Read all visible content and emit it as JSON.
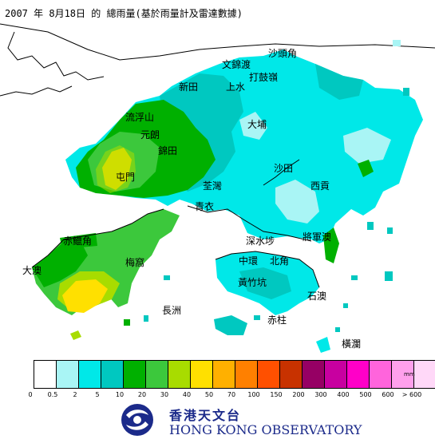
{
  "title": "2007 年 8月18日 的 總雨量(基於雨量計及雷達數據)",
  "places": [
    {
      "id": "sha-tau-kok",
      "label": "沙頭角"
    },
    {
      "id": "ta-kwu-ling",
      "label": "打鼓嶺"
    },
    {
      "id": "man-kam-to",
      "label": "文錦渡"
    },
    {
      "id": "san-tin",
      "label": "新田"
    },
    {
      "id": "sheung-shui",
      "label": "上水"
    },
    {
      "id": "lau-fau-shan",
      "label": "流浮山"
    },
    {
      "id": "yuen-long",
      "label": "元朗"
    },
    {
      "id": "kam-tin",
      "label": "錦田"
    },
    {
      "id": "tai-po",
      "label": "大埔"
    },
    {
      "id": "tuen-mun",
      "label": "屯門"
    },
    {
      "id": "sha-tin",
      "label": "沙田"
    },
    {
      "id": "sai-kung",
      "label": "西貢"
    },
    {
      "id": "tsuen-wan",
      "label": "荃灣"
    },
    {
      "id": "tsing-yi",
      "label": "青衣"
    },
    {
      "id": "chek-lap-kok",
      "label": "赤鱲角"
    },
    {
      "id": "sham-shui-po",
      "label": "深水埗"
    },
    {
      "id": "tseung-kwan-o",
      "label": "將軍澳"
    },
    {
      "id": "mui-wo",
      "label": "梅窩"
    },
    {
      "id": "central",
      "label": "中環"
    },
    {
      "id": "north-point",
      "label": "北角"
    },
    {
      "id": "tai-o",
      "label": "大澳"
    },
    {
      "id": "wong-chuk-hang",
      "label": "黃竹坑"
    },
    {
      "id": "shek-o",
      "label": "石澳"
    },
    {
      "id": "cheung-chau",
      "label": "長洲"
    },
    {
      "id": "stanley",
      "label": "赤柱"
    },
    {
      "id": "waglan",
      "label": "橫瀾"
    }
  ],
  "legend": {
    "unit": "mm",
    "colors": [
      "#ffffff",
      "#a9f5f5",
      "#00e8e8",
      "#00c8c0",
      "#00b000",
      "#3cc83c",
      "#a8dc00",
      "#ffe000",
      "#ffb000",
      "#ff8000",
      "#ff5000",
      "#c83200",
      "#960064",
      "#c800a0",
      "#ff00c8",
      "#ff64dc",
      "#ffa0ec",
      "#ffd8f8"
    ],
    "ticks": [
      "0",
      "0.5",
      "2",
      "5",
      "10",
      "20",
      "30",
      "40",
      "50",
      "70",
      "100",
      "150",
      "200",
      "300",
      "400",
      "500",
      "600",
      "> 600"
    ]
  },
  "organization": {
    "name_cn": "香港天文台",
    "name_en": "HONG KONG OBSERVATORY"
  }
}
